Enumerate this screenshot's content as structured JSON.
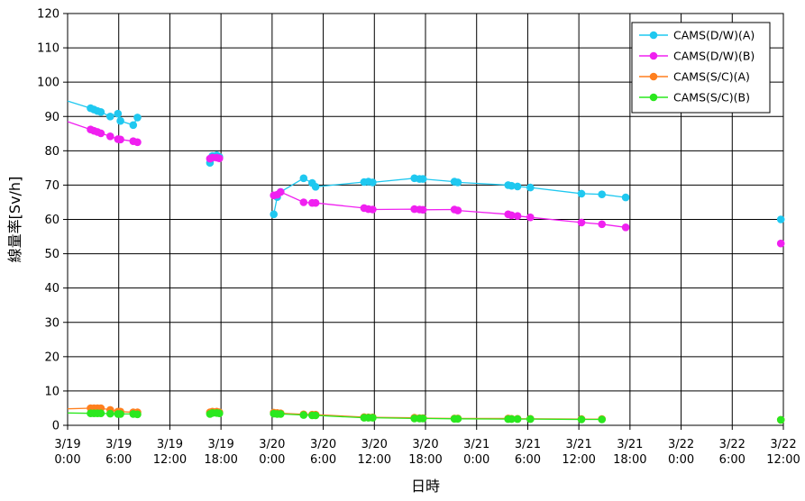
{
  "chart_data": {
    "type": "line",
    "title": "",
    "xlabel": "日時",
    "ylabel": "線量率[Sv/h]",
    "ylim": [
      0,
      120
    ],
    "yticks": [
      0,
      10,
      20,
      30,
      40,
      50,
      60,
      70,
      80,
      90,
      100,
      110,
      120
    ],
    "x_unit": "hours since 3/19 0:00",
    "xlim": [
      0,
      84
    ],
    "xticks": [
      {
        "x": 0,
        "line1": "3/19",
        "line2": "0:00"
      },
      {
        "x": 6,
        "line1": "3/19",
        "line2": "6:00"
      },
      {
        "x": 12,
        "line1": "3/19",
        "line2": "12:00"
      },
      {
        "x": 18,
        "line1": "3/19",
        "line2": "18:00"
      },
      {
        "x": 24,
        "line1": "3/20",
        "line2": "0:00"
      },
      {
        "x": 30,
        "line1": "3/20",
        "line2": "6:00"
      },
      {
        "x": 36,
        "line1": "3/20",
        "line2": "12:00"
      },
      {
        "x": 42,
        "line1": "3/20",
        "line2": "18:00"
      },
      {
        "x": 48,
        "line1": "3/21",
        "line2": "0:00"
      },
      {
        "x": 54,
        "line1": "3/21",
        "line2": "6:00"
      },
      {
        "x": 60,
        "line1": "3/21",
        "line2": "12:00"
      },
      {
        "x": 66,
        "line1": "3/21",
        "line2": "18:00"
      },
      {
        "x": 72,
        "line1": "3/22",
        "line2": "0:00"
      },
      {
        "x": 78,
        "line1": "3/22",
        "line2": "6:00"
      },
      {
        "x": 84,
        "line1": "3/22",
        "line2": "12:00"
      }
    ],
    "grid": true,
    "legend_position": "top-right",
    "series": [
      {
        "name": "CAMS(D/W)(A)",
        "color": "#1fc8f0",
        "segments": [
          [
            [
              -0.3,
              94.5
            ],
            [
              2.7,
              92.4
            ],
            [
              3.1,
              92.0
            ],
            [
              3.5,
              91.6
            ],
            [
              3.9,
              91.3
            ],
            [
              5.0,
              90.0
            ],
            [
              5.9,
              90.8
            ],
            [
              6.2,
              88.7
            ],
            [
              7.7,
              87.5
            ],
            [
              8.2,
              89.7
            ]
          ],
          [
            [
              16.7,
              76.5
            ],
            [
              17.0,
              78.5
            ],
            [
              17.5,
              78.7
            ],
            [
              17.8,
              78.2
            ]
          ],
          [
            [
              24.2,
              61.5
            ],
            [
              24.6,
              66.5
            ],
            [
              25.0,
              68.0
            ],
            [
              27.7,
              72.0
            ],
            [
              28.7,
              70.6
            ],
            [
              29.1,
              69.5
            ],
            [
              34.8,
              70.9
            ],
            [
              35.3,
              71.0
            ],
            [
              35.8,
              70.8
            ],
            [
              40.7,
              72.0
            ],
            [
              41.3,
              71.8
            ],
            [
              41.7,
              71.8
            ],
            [
              45.4,
              71.0
            ],
            [
              45.8,
              70.8
            ],
            [
              51.7,
              70.0
            ],
            [
              52.1,
              69.8
            ],
            [
              52.8,
              69.6
            ],
            [
              54.3,
              69.3
            ],
            [
              60.3,
              67.5
            ],
            [
              62.7,
              67.3
            ],
            [
              65.5,
              66.4
            ]
          ]
        ],
        "isolated": [
          [
            83.7,
            60.0
          ]
        ]
      },
      {
        "name": "CAMS(D/W)(B)",
        "color": "#f020f0",
        "segments": [
          [
            [
              -0.3,
              88.5
            ],
            [
              2.7,
              86.2
            ],
            [
              3.1,
              85.8
            ],
            [
              3.5,
              85.5
            ],
            [
              3.9,
              85.1
            ],
            [
              5.0,
              84.2
            ],
            [
              5.9,
              83.4
            ],
            [
              6.2,
              83.3
            ],
            [
              7.7,
              82.8
            ],
            [
              8.2,
              82.5
            ]
          ],
          [
            [
              16.7,
              77.7
            ],
            [
              17.0,
              78.0
            ],
            [
              17.5,
              78.0
            ],
            [
              17.8,
              77.8
            ]
          ],
          [
            [
              24.2,
              67.0
            ],
            [
              24.6,
              67.2
            ],
            [
              25.0,
              68.0
            ],
            [
              27.7,
              65.0
            ],
            [
              28.7,
              64.8
            ],
            [
              29.1,
              64.8
            ],
            [
              34.8,
              63.3
            ],
            [
              35.3,
              63.0
            ],
            [
              35.8,
              62.9
            ],
            [
              40.7,
              63.0
            ],
            [
              41.3,
              62.9
            ],
            [
              41.7,
              62.8
            ],
            [
              45.4,
              62.9
            ],
            [
              45.8,
              62.6
            ],
            [
              51.7,
              61.5
            ],
            [
              52.1,
              61.2
            ],
            [
              52.8,
              61.0
            ],
            [
              54.3,
              60.6
            ],
            [
              60.3,
              59.1
            ],
            [
              62.7,
              58.6
            ],
            [
              65.5,
              57.7
            ]
          ]
        ],
        "isolated": [
          [
            83.7,
            53.0
          ]
        ]
      },
      {
        "name": "CAMS(S/C)(A)",
        "color": "#ff7f1e",
        "segments": [
          [
            [
              -0.3,
              4.8
            ],
            [
              2.7,
              5.0
            ],
            [
              3.1,
              5.0
            ],
            [
              3.5,
              5.0
            ],
            [
              3.9,
              5.0
            ],
            [
              5.0,
              4.5
            ],
            [
              5.9,
              4.0
            ],
            [
              6.2,
              4.0
            ],
            [
              7.7,
              3.8
            ],
            [
              8.2,
              3.8
            ]
          ],
          [
            [
              16.7,
              3.8
            ],
            [
              17.0,
              4.0
            ],
            [
              17.5,
              4.0
            ],
            [
              17.8,
              3.8
            ]
          ],
          [
            [
              24.2,
              3.7
            ],
            [
              24.6,
              3.6
            ],
            [
              25.0,
              3.5
            ],
            [
              27.7,
              3.2
            ],
            [
              28.7,
              3.1
            ],
            [
              29.1,
              3.1
            ],
            [
              34.8,
              2.4
            ],
            [
              35.3,
              2.3
            ],
            [
              35.8,
              2.3
            ],
            [
              40.7,
              2.2
            ],
            [
              41.3,
              2.1
            ],
            [
              41.7,
              2.1
            ],
            [
              45.4,
              2.0
            ],
            [
              45.8,
              2.0
            ],
            [
              51.7,
              2.0
            ],
            [
              52.1,
              1.9
            ],
            [
              52.8,
              1.9
            ],
            [
              54.3,
              1.9
            ],
            [
              60.3,
              1.8
            ],
            [
              62.7,
              1.8
            ]
          ]
        ],
        "isolated": [
          [
            83.7,
            1.6
          ]
        ]
      },
      {
        "name": "CAMS(S/C)(B)",
        "color": "#2ae81e",
        "segments": [
          [
            [
              -0.3,
              3.6
            ],
            [
              2.7,
              3.5
            ],
            [
              3.1,
              3.5
            ],
            [
              3.5,
              3.5
            ],
            [
              3.9,
              3.5
            ],
            [
              5.0,
              3.4
            ],
            [
              5.9,
              3.3
            ],
            [
              6.2,
              3.3
            ],
            [
              7.7,
              3.3
            ],
            [
              8.2,
              3.2
            ]
          ],
          [
            [
              16.7,
              3.3
            ],
            [
              17.0,
              3.6
            ],
            [
              17.5,
              3.6
            ],
            [
              17.8,
              3.5
            ]
          ],
          [
            [
              24.2,
              3.4
            ],
            [
              24.6,
              3.3
            ],
            [
              25.0,
              3.3
            ],
            [
              27.7,
              3.0
            ],
            [
              28.7,
              2.9
            ],
            [
              29.1,
              2.9
            ],
            [
              34.8,
              2.2
            ],
            [
              35.3,
              2.2
            ],
            [
              35.8,
              2.2
            ],
            [
              40.7,
              2.0
            ],
            [
              41.3,
              2.0
            ],
            [
              41.7,
              2.0
            ],
            [
              45.4,
              1.9
            ],
            [
              45.8,
              1.9
            ],
            [
              51.7,
              1.8
            ],
            [
              52.1,
              1.8
            ],
            [
              52.8,
              1.8
            ],
            [
              54.3,
              1.8
            ],
            [
              60.3,
              1.7
            ],
            [
              62.7,
              1.7
            ]
          ]
        ],
        "isolated": [
          [
            83.7,
            1.6
          ]
        ]
      }
    ]
  }
}
